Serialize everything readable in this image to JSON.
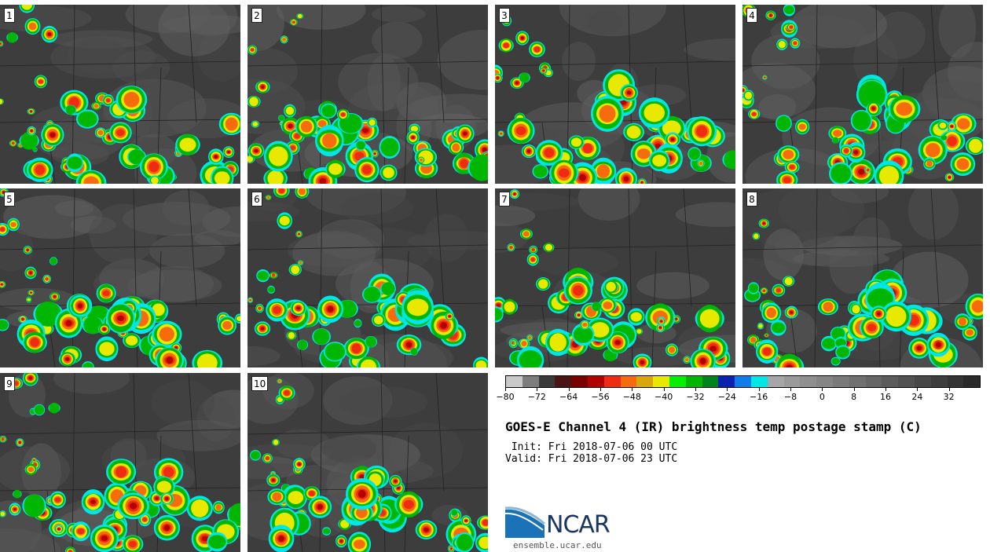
{
  "panels": [
    {
      "label": "1"
    },
    {
      "label": "2"
    },
    {
      "label": "3"
    },
    {
      "label": "4"
    },
    {
      "label": "5"
    },
    {
      "label": "6"
    },
    {
      "label": "7"
    },
    {
      "label": "8"
    },
    {
      "label": "9"
    },
    {
      "label": "10"
    }
  ],
  "colorbar": {
    "colors": [
      "#c9c9c9",
      "#7d7d7d",
      "#3a3a3a",
      "#4a1414",
      "#7a0000",
      "#b30000",
      "#ef2b12",
      "#f66c0c",
      "#d9a60c",
      "#e8e800",
      "#00f000",
      "#00b600",
      "#00821c",
      "#0a22b0",
      "#0e7de8",
      "#00e6e6",
      "#a6a6a6",
      "#9a9a9a",
      "#8f8f8f",
      "#858585",
      "#7a7a7a",
      "#707070",
      "#666666",
      "#5c5c5c",
      "#525252",
      "#484848",
      "#3e3e3e",
      "#343434",
      "#2a2a2a"
    ],
    "ticks": [
      "-80",
      "-72",
      "-64",
      "-56",
      "-48",
      "-40",
      "-32",
      "-24",
      "-16",
      "-8",
      "0",
      "8",
      "16",
      "24",
      "32"
    ],
    "min": -80,
    "max": 40
  },
  "title": "GOES-E Channel 4 (IR) brightness temp postage stamp (C)",
  "init": " Init: Fri 2018-07-06 00 UTC",
  "valid": "Valid: Fri 2018-07-06 23 UTC",
  "logo": {
    "name": "NCAR",
    "url": "ensemble.ucar.edu"
  }
}
